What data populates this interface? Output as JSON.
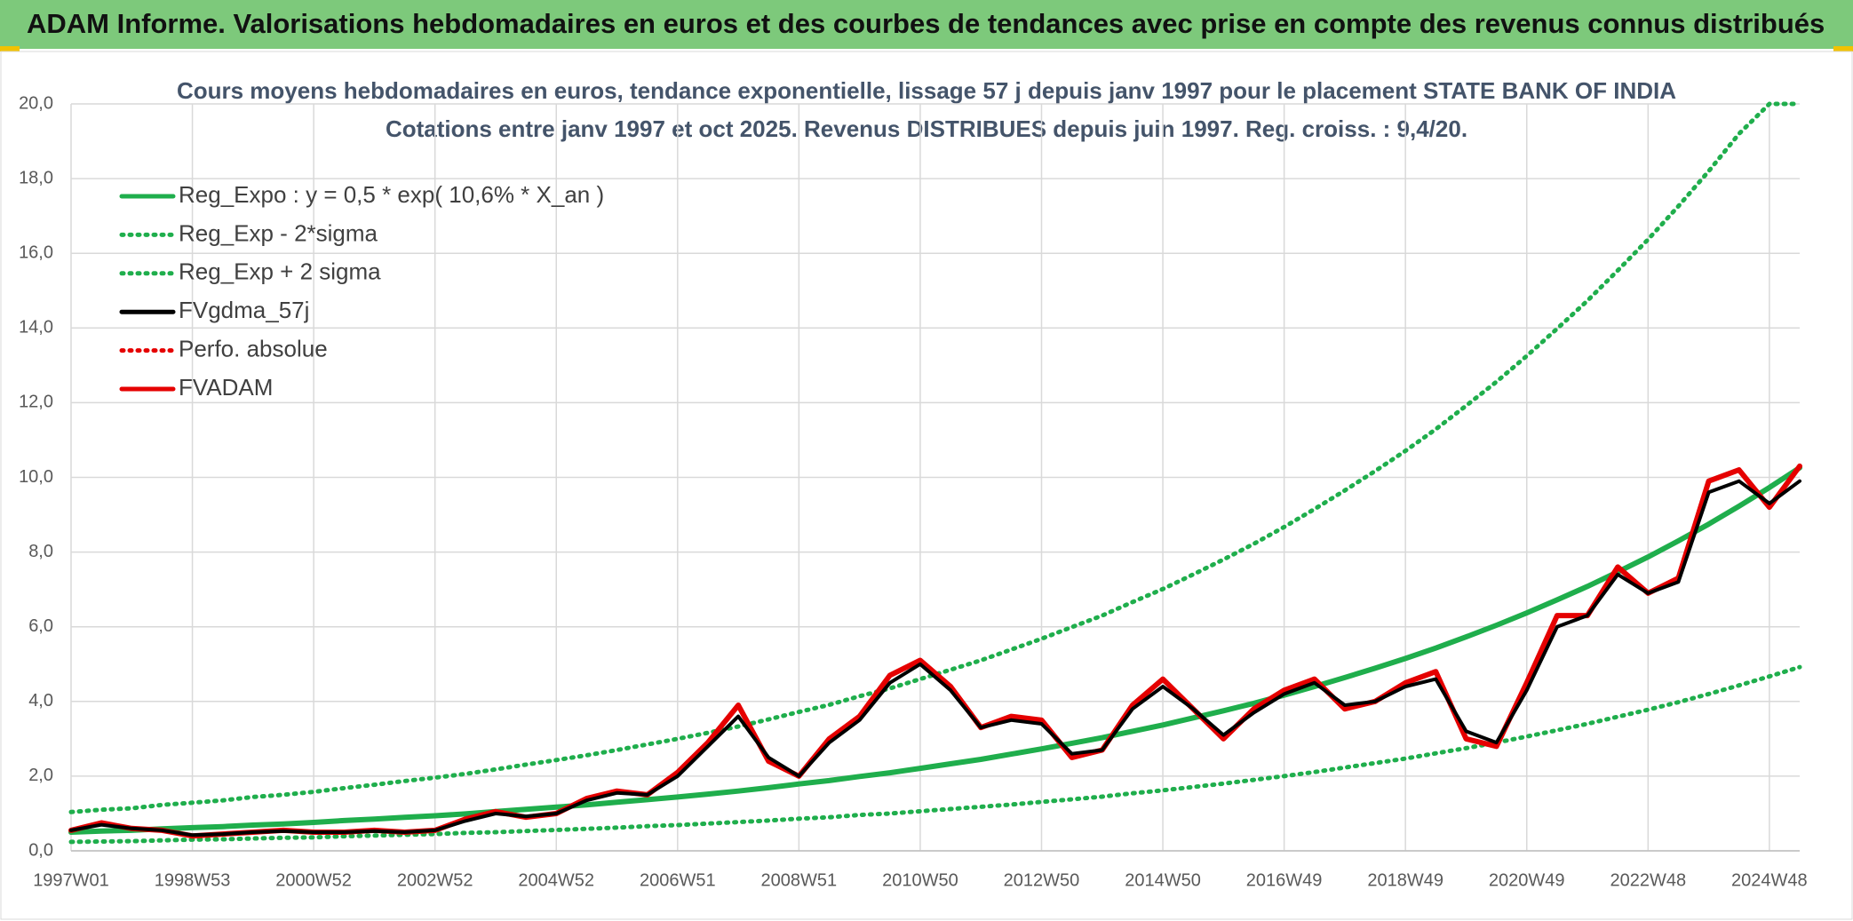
{
  "chart_data": {
    "type": "line",
    "title": "ADAM Informe. Valorisations hebdomadaires en euros et des courbes de tendances avec prise en compte des revenus connus distribués",
    "subtitle": [
      "Cours moyens hebdomadaires en euros, tendance exponentielle, lissage 57 j depuis janv 1997 pour le placement STATE BANK OF INDIA",
      "Cotations entre janv 1997 et oct 2025. Revenus DISTRIBUES depuis juin 1997. Reg. croiss. : 9,4/20."
    ],
    "categories": [
      "1997W01",
      null,
      null,
      null,
      "1998W53",
      null,
      null,
      null,
      "2000W52",
      null,
      null,
      null,
      "2002W52",
      null,
      null,
      null,
      "2004W52",
      null,
      null,
      null,
      "2006W51",
      null,
      null,
      null,
      "2008W51",
      null,
      null,
      null,
      "2010W50",
      null,
      null,
      null,
      "2012W50",
      null,
      null,
      null,
      "2014W50",
      null,
      null,
      null,
      "2016W49",
      null,
      null,
      null,
      "2018W49",
      null,
      null,
      null,
      "2020W49",
      null,
      null,
      null,
      "2022W48",
      null,
      null,
      null,
      "2024W48",
      null
    ],
    "ylim": [
      0,
      20
    ],
    "yticks": [
      {
        "value": 0,
        "label": "0,0"
      },
      {
        "value": 2,
        "label": "2,0"
      },
      {
        "value": 4,
        "label": "4,0"
      },
      {
        "value": 6,
        "label": "6,0"
      },
      {
        "value": 8,
        "label": "8,0"
      },
      {
        "value": 10,
        "label": "10,0"
      },
      {
        "value": 12,
        "label": "12,0"
      },
      {
        "value": 14,
        "label": "14,0"
      },
      {
        "value": 16,
        "label": "16,0"
      },
      {
        "value": 18,
        "label": "18,0"
      },
      {
        "value": 20,
        "label": "20,0"
      }
    ],
    "grid": true,
    "legend": "top-left",
    "series": [
      {
        "name": "Reg_Expo : y = 0,5 * exp( 10,6% *  X_an )",
        "color": "#1fae4c",
        "style": "solid",
        "values": [
          0.5,
          0.53,
          0.55,
          0.59,
          0.62,
          0.65,
          0.69,
          0.72,
          0.76,
          0.81,
          0.85,
          0.9,
          0.94,
          0.99,
          1.05,
          1.11,
          1.17,
          1.23,
          1.3,
          1.37,
          1.44,
          1.52,
          1.6,
          1.69,
          1.79,
          1.88,
          1.99,
          2.09,
          2.21,
          2.33,
          2.45,
          2.59,
          2.73,
          2.88,
          3.03,
          3.2,
          3.37,
          3.56,
          3.75,
          3.95,
          4.17,
          4.4,
          4.64,
          4.89,
          5.15,
          5.43,
          5.73,
          6.04,
          6.37,
          6.72,
          7.08,
          7.47,
          7.87,
          8.3,
          8.75,
          9.23,
          9.73,
          10.26
        ]
      },
      {
        "name": "Reg_Exp - 2*sigma",
        "color": "#1fae4c",
        "style": "dotted",
        "values": [
          0.24,
          0.25,
          0.26,
          0.28,
          0.3,
          0.31,
          0.33,
          0.35,
          0.36,
          0.39,
          0.41,
          0.43,
          0.45,
          0.48,
          0.5,
          0.53,
          0.56,
          0.59,
          0.62,
          0.66,
          0.69,
          0.73,
          0.77,
          0.81,
          0.86,
          0.9,
          0.96,
          1.0,
          1.06,
          1.12,
          1.18,
          1.24,
          1.31,
          1.38,
          1.45,
          1.54,
          1.62,
          1.71,
          1.8,
          1.9,
          2.0,
          2.11,
          2.23,
          2.35,
          2.47,
          2.61,
          2.75,
          2.9,
          3.06,
          3.23,
          3.4,
          3.59,
          3.78,
          3.98,
          4.2,
          4.43,
          4.67,
          4.92
        ]
      },
      {
        "name": "Reg_Exp + 2 sigma",
        "color": "#1fae4c",
        "style": "dotted",
        "values": [
          1.04,
          1.1,
          1.14,
          1.23,
          1.29,
          1.35,
          1.44,
          1.5,
          1.58,
          1.68,
          1.77,
          1.87,
          1.96,
          2.06,
          2.18,
          2.31,
          2.43,
          2.56,
          2.7,
          2.85,
          3.0,
          3.16,
          3.33,
          3.52,
          3.72,
          3.91,
          4.14,
          4.35,
          4.6,
          4.85,
          5.1,
          5.39,
          5.68,
          5.99,
          6.3,
          6.66,
          7.01,
          7.4,
          7.8,
          8.22,
          8.67,
          9.15,
          9.65,
          10.17,
          10.71,
          11.29,
          11.92,
          12.56,
          13.25,
          13.98,
          14.73,
          15.54,
          16.37,
          17.26,
          18.2,
          19.2,
          20,
          20
        ]
      },
      {
        "name": "FVgdma_57j",
        "color": "#000000",
        "style": "solid",
        "values": [
          0.55,
          0.7,
          0.6,
          0.55,
          0.42,
          0.45,
          0.5,
          0.53,
          0.5,
          0.5,
          0.53,
          0.5,
          0.55,
          0.8,
          1.0,
          0.92,
          1.0,
          1.35,
          1.55,
          1.5,
          2.0,
          2.8,
          3.6,
          2.5,
          2.0,
          2.9,
          3.5,
          4.5,
          5.0,
          4.3,
          3.3,
          3.5,
          3.4,
          2.6,
          2.7,
          3.8,
          4.4,
          3.8,
          3.1,
          3.7,
          4.2,
          4.5,
          3.9,
          4.0,
          4.4,
          4.6,
          3.2,
          2.9,
          4.3,
          6.0,
          6.3,
          7.4,
          6.9,
          7.2,
          9.6,
          9.9,
          9.3,
          9.9
        ]
      },
      {
        "name": "Perfo. absolue",
        "color": "#e50000",
        "style": "dotted",
        "values": [
          0.55,
          0.75,
          0.6,
          0.55,
          0.4,
          0.45,
          0.5,
          0.55,
          0.5,
          0.5,
          0.55,
          0.5,
          0.55,
          0.85,
          1.05,
          0.9,
          1.0,
          1.4,
          1.6,
          1.5,
          2.1,
          2.9,
          3.9,
          2.4,
          2.0,
          3.0,
          3.6,
          4.7,
          5.1,
          4.4,
          3.3,
          3.6,
          3.5,
          2.5,
          2.7,
          3.9,
          4.6,
          3.8,
          3.0,
          3.8,
          4.3,
          4.6,
          3.8,
          4.0,
          4.5,
          4.8,
          3.0,
          2.8,
          4.5,
          6.3,
          6.3,
          7.6,
          6.9,
          7.3,
          9.9,
          10.2,
          9.2,
          10.3
        ]
      },
      {
        "name": "FVADAM",
        "color": "#e50000",
        "style": "solid",
        "values": [
          0.55,
          0.75,
          0.6,
          0.55,
          0.4,
          0.45,
          0.5,
          0.55,
          0.5,
          0.5,
          0.55,
          0.5,
          0.55,
          0.85,
          1.05,
          0.9,
          1.0,
          1.4,
          1.6,
          1.5,
          2.1,
          2.9,
          3.9,
          2.4,
          2.0,
          3.0,
          3.6,
          4.7,
          5.1,
          4.4,
          3.3,
          3.6,
          3.5,
          2.5,
          2.7,
          3.9,
          4.6,
          3.8,
          3.0,
          3.8,
          4.3,
          4.6,
          3.8,
          4.0,
          4.5,
          4.8,
          3.0,
          2.8,
          4.5,
          6.3,
          6.3,
          7.6,
          6.9,
          7.3,
          9.9,
          10.2,
          9.2,
          10.3
        ]
      }
    ]
  }
}
